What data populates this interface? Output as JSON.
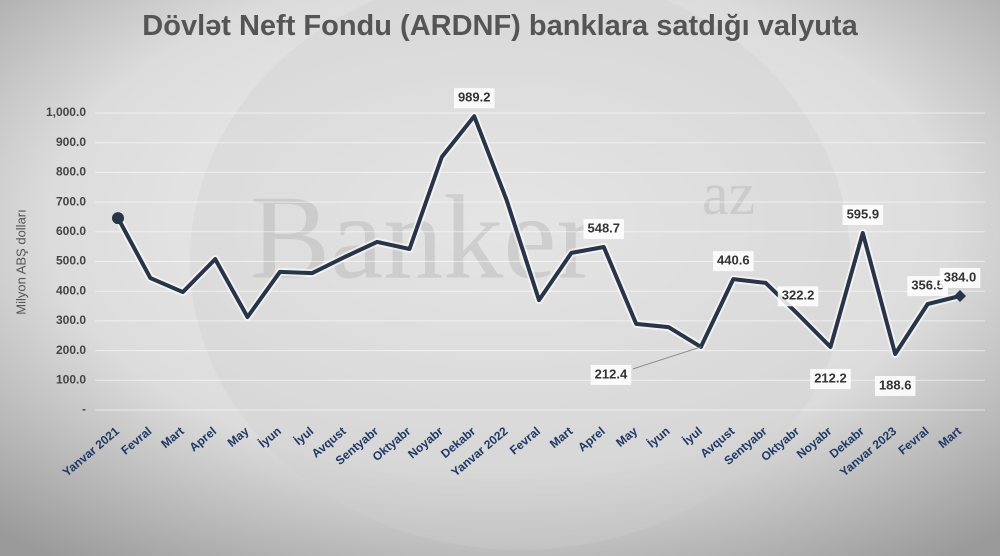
{
  "chart_data": {
    "type": "line",
    "title": "Dövlət Neft Fondu (ARDNF) banklara satdığı valyuta",
    "watermark": "Banker",
    "watermark_sup": "az",
    "y_label": "Milyon ABŞ dolları",
    "categories": [
      "Yanvar 2021",
      "Fevral",
      "Mart",
      "Aprel",
      "May",
      "İyun",
      "İyul",
      "Avqust",
      "Sentyabr",
      "Oktyabr",
      "Noyabr",
      "Dekabr",
      "Yanvar 2022",
      "Fevral",
      "Mart",
      "Aprel",
      "May",
      "İyun",
      "İyul",
      "Avqust",
      "Sentyabr",
      "Oktyabr",
      "Noyabr",
      "Dekabr",
      "Yanvar 2023",
      "Fevral",
      "Mart"
    ],
    "values": [
      646,
      444,
      397,
      508,
      313,
      465,
      461,
      515,
      566,
      542,
      852,
      989.2,
      707,
      370,
      529,
      548.7,
      290,
      279,
      212.4,
      440.6,
      428,
      322.2,
      212.2,
      595.9,
      188.6,
      356.5,
      384
    ],
    "value_labels": [
      null,
      null,
      null,
      null,
      null,
      null,
      null,
      null,
      null,
      null,
      null,
      "989.2",
      null,
      null,
      null,
      "548.7",
      null,
      null,
      "212.4",
      "440.6",
      null,
      "322.2",
      "212.2",
      "595.9",
      "188.6",
      "356.5",
      "384.0"
    ],
    "color": "#283447",
    "ylim": [
      0,
      1000
    ],
    "yticks": [
      {
        "value": 0,
        "label": "-"
      },
      {
        "value": 100,
        "label": "100.0"
      },
      {
        "value": 200,
        "label": "200.0"
      },
      {
        "value": 300,
        "label": "300.0"
      },
      {
        "value": 400,
        "label": "400.0"
      },
      {
        "value": 500,
        "label": "500.0"
      },
      {
        "value": 600,
        "label": "600.0"
      },
      {
        "value": 700,
        "label": "700.0"
      },
      {
        "value": 800,
        "label": "800.0"
      },
      {
        "value": 900,
        "label": "900.0"
      },
      {
        "value": 1000,
        "label": "1,000.0"
      }
    ],
    "grid": true
  }
}
